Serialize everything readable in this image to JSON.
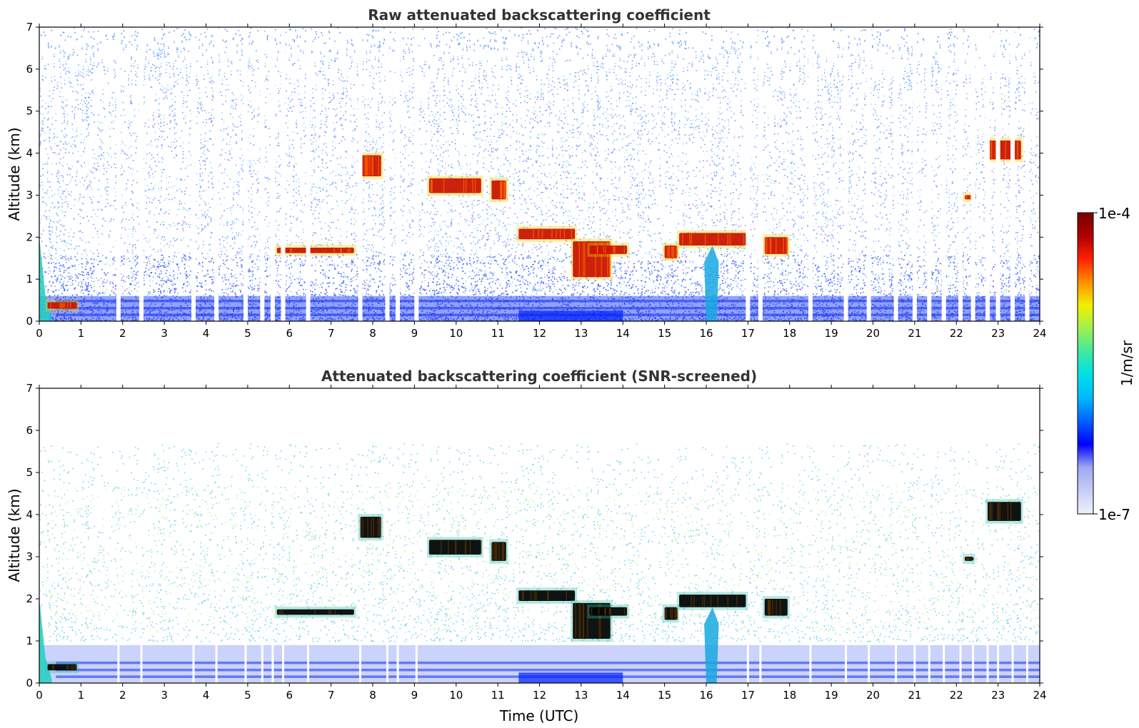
{
  "chart_data": [
    {
      "type": "heatmap",
      "title": "Raw attenuated backscattering coefficient",
      "xlabel": "",
      "ylabel": "Altitude (km)",
      "xlim": [
        0,
        24
      ],
      "ylim": [
        0,
        7
      ],
      "xticks": [
        "0",
        "1",
        "2",
        "3",
        "4",
        "5",
        "6",
        "7",
        "8",
        "9",
        "10",
        "11",
        "12",
        "13",
        "14",
        "15",
        "16",
        "17",
        "18",
        "19",
        "20",
        "21",
        "22",
        "23",
        "24"
      ],
      "yticks": [
        "0",
        "1",
        "2",
        "3",
        "4",
        "5",
        "6",
        "7"
      ],
      "background_noise": "blue-cyan speckle throughout, denser low, dense blue boundary layer below 0.6 km",
      "data_gaps_hours": [
        1.9,
        2.45,
        3.7,
        4.25,
        4.95,
        5.35,
        5.6,
        5.85,
        6.45,
        7.7,
        8.35,
        8.6,
        9.05,
        17.0,
        17.3,
        18.5,
        19.35,
        19.9,
        20.55,
        21.0,
        21.35,
        21.7,
        22.1,
        22.4,
        22.75,
        23.0,
        23.35,
        23.7
      ],
      "cloud_layers": [
        {
          "t": [
            0.2,
            0.9
          ],
          "alt_km": [
            0.3,
            0.45
          ]
        },
        {
          "t": [
            5.7,
            7.55
          ],
          "alt_km": [
            1.62,
            1.75
          ]
        },
        {
          "t": [
            7.7,
            8.2
          ],
          "alt_km": [
            3.45,
            3.95
          ]
        },
        {
          "t": [
            9.35,
            10.6
          ],
          "alt_km": [
            3.05,
            3.4
          ]
        },
        {
          "t": [
            10.85,
            11.2
          ],
          "alt_km": [
            2.9,
            3.35
          ]
        },
        {
          "t": [
            11.5,
            12.85
          ],
          "alt_km": [
            1.95,
            2.2
          ]
        },
        {
          "t": [
            12.8,
            13.7
          ],
          "alt_km": [
            1.05,
            1.9
          ]
        },
        {
          "t": [
            13.2,
            14.1
          ],
          "alt_km": [
            1.6,
            1.8
          ]
        },
        {
          "t": [
            15.0,
            15.3
          ],
          "alt_km": [
            1.5,
            1.8
          ]
        },
        {
          "t": [
            15.35,
            16.95
          ],
          "alt_km": [
            1.8,
            2.1
          ]
        },
        {
          "t": [
            17.4,
            17.95
          ],
          "alt_km": [
            1.6,
            2.0
          ]
        },
        {
          "t": [
            22.2,
            22.4
          ],
          "alt_km": [
            2.9,
            3.0
          ]
        },
        {
          "t": [
            22.75,
            23.55
          ],
          "alt_km": [
            3.85,
            4.3
          ]
        }
      ]
    },
    {
      "type": "heatmap",
      "title": "Attenuated backscattering coefficient (SNR-screened)",
      "xlabel": "Time (UTC)",
      "ylabel": "Altitude (km)",
      "xlim": [
        0,
        24
      ],
      "ylim": [
        0,
        7
      ],
      "xticks": [
        "0",
        "1",
        "2",
        "3",
        "4",
        "5",
        "6",
        "7",
        "8",
        "9",
        "10",
        "11",
        "12",
        "13",
        "14",
        "15",
        "16",
        "17",
        "18",
        "19",
        "20",
        "21",
        "22",
        "23",
        "24"
      ],
      "yticks": [
        "0",
        "1",
        "2",
        "3",
        "4",
        "5",
        "6",
        "7"
      ],
      "screening": "low-SNR pixels removed; sparse green/cyan points remain above 1 km, saturated cores shown black",
      "cloud_layers": [
        {
          "t": [
            0.2,
            0.9
          ],
          "alt_km": [
            0.3,
            0.45
          ]
        },
        {
          "t": [
            5.7,
            7.55
          ],
          "alt_km": [
            1.62,
            1.75
          ]
        },
        {
          "t": [
            7.7,
            8.2
          ],
          "alt_km": [
            3.45,
            3.95
          ]
        },
        {
          "t": [
            9.35,
            10.6
          ],
          "alt_km": [
            3.05,
            3.4
          ]
        },
        {
          "t": [
            10.85,
            11.2
          ],
          "alt_km": [
            2.9,
            3.35
          ]
        },
        {
          "t": [
            11.5,
            12.85
          ],
          "alt_km": [
            1.95,
            2.2
          ]
        },
        {
          "t": [
            12.8,
            13.7
          ],
          "alt_km": [
            1.05,
            1.9
          ]
        },
        {
          "t": [
            13.2,
            14.1
          ],
          "alt_km": [
            1.6,
            1.8
          ]
        },
        {
          "t": [
            15.0,
            15.3
          ],
          "alt_km": [
            1.5,
            1.8
          ]
        },
        {
          "t": [
            15.35,
            16.95
          ],
          "alt_km": [
            1.8,
            2.1
          ]
        },
        {
          "t": [
            17.4,
            17.95
          ],
          "alt_km": [
            1.6,
            2.0
          ]
        },
        {
          "t": [
            22.2,
            22.4
          ],
          "alt_km": [
            2.9,
            3.0
          ]
        },
        {
          "t": [
            22.75,
            23.55
          ],
          "alt_km": [
            3.85,
            4.3
          ]
        }
      ]
    }
  ],
  "colorbar": {
    "label": "1/m/sr",
    "max_label": "1e-4",
    "min_label": "1e-7",
    "scale": "log",
    "colormap": [
      "#f0f0fb",
      "#c8cdf5",
      "#9ea8f2",
      "#0000ff",
      "#0060ff",
      "#00b8ff",
      "#00e0e8",
      "#40e8a0",
      "#a0f050",
      "#f0f000",
      "#ff9000",
      "#ff2000",
      "#b00000",
      "#7a0000"
    ]
  },
  "colors": {
    "noise_blue": "#2040ff",
    "noise_cyan": "#20b8e8",
    "noise_green": "#80e060",
    "boundary_layer": "#1030f0",
    "cloud_red": "#c81000",
    "saturated": "#000000"
  }
}
